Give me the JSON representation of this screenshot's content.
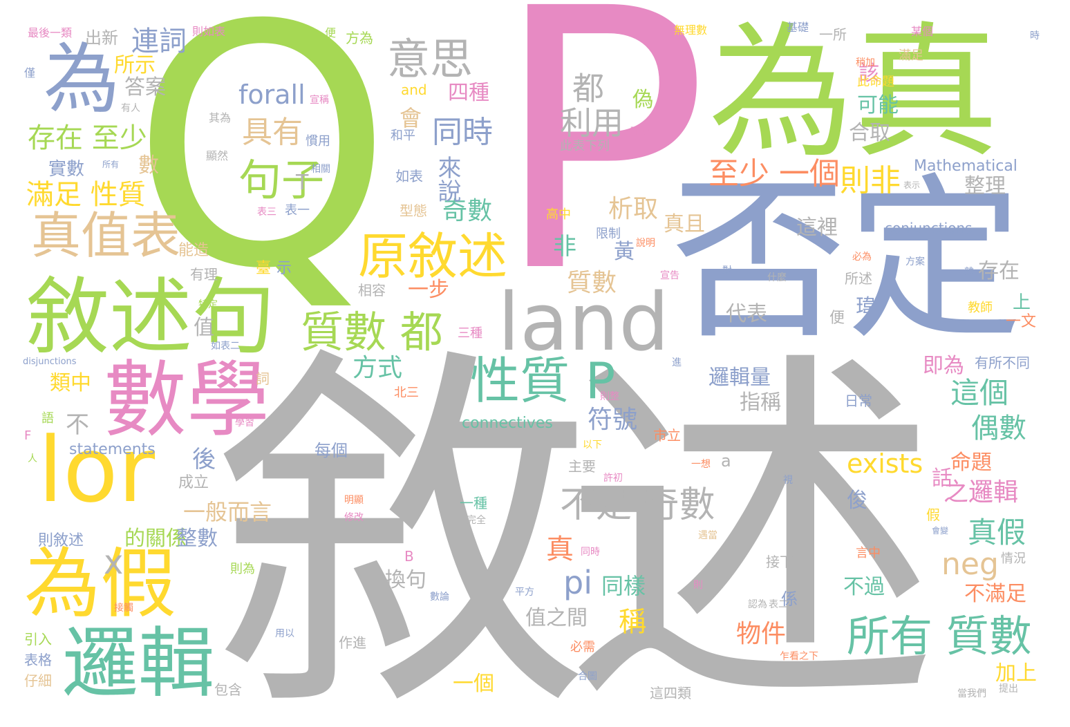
{
  "words": [
    {
      "text": "敘述",
      "color": "#b3b3b3"
    },
    {
      "text": "P",
      "color": "#e78ac3"
    },
    {
      "text": "Q",
      "color": "#a6d854"
    },
    {
      "text": "否定",
      "color": "#8da0cb"
    },
    {
      "text": "為真",
      "color": "#a6d854"
    },
    {
      "text": "為",
      "color": "#8da0cb"
    },
    {
      "text": "敘述句",
      "color": "#a6d854"
    },
    {
      "text": "數學",
      "color": "#e78ac3"
    },
    {
      "text": "land",
      "color": "#b3b3b3"
    },
    {
      "text": "lor",
      "color": "#ffd92f"
    },
    {
      "text": "為假",
      "color": "#ffd92f"
    },
    {
      "text": "邏輯",
      "color": "#66c2a5"
    },
    {
      "text": "真值表",
      "color": "#e5c494"
    },
    {
      "text": "原敘述",
      "color": "#ffd92f"
    },
    {
      "text": "性質 P",
      "color": "#66c2a5"
    },
    {
      "text": "所有 質數",
      "color": "#66c2a5"
    },
    {
      "text": "質數 都",
      "color": "#a6d854"
    },
    {
      "text": "句子",
      "color": "#a6d854"
    },
    {
      "text": "意思",
      "color": "#b3b3b3"
    },
    {
      "text": "不是 奇數",
      "color": "#b3b3b3"
    },
    {
      "text": "存在 至少",
      "color": "#a6d854"
    },
    {
      "text": "滿足 性質",
      "color": "#ffd92f"
    },
    {
      "text": "連詞",
      "color": "#8da0cb"
    },
    {
      "text": "forall",
      "color": "#8da0cb"
    },
    {
      "text": "具有",
      "color": "#e5c494"
    },
    {
      "text": "同時",
      "color": "#8da0cb"
    },
    {
      "text": "至少 一個",
      "color": "#fc8d62"
    },
    {
      "text": "則非",
      "color": "#ffd92f"
    },
    {
      "text": "都",
      "color": "#b3b3b3"
    },
    {
      "text": "利用",
      "color": "#b3b3b3"
    },
    {
      "text": "exists",
      "color": "#ffd92f"
    },
    {
      "text": "neg",
      "color": "#e5c494"
    },
    {
      "text": "pi",
      "color": "#8da0cb"
    },
    {
      "text": "Mathematical",
      "color": "#8da0cb"
    },
    {
      "text": "conjunctions",
      "color": "#8da0cb"
    },
    {
      "text": "connectives",
      "color": "#66c2a5"
    },
    {
      "text": "statements",
      "color": "#8da0cb"
    },
    {
      "text": "disjunctions",
      "color": "#8da0cb"
    },
    {
      "text": "and",
      "color": "#ffd92f"
    },
    {
      "text": "奇數",
      "color": "#66c2a5"
    },
    {
      "text": "析取",
      "color": "#e5c494"
    },
    {
      "text": "質數",
      "color": "#e5c494"
    },
    {
      "text": "這個",
      "color": "#66c2a5"
    },
    {
      "text": "偶數",
      "color": "#66c2a5"
    },
    {
      "text": "真假",
      "color": "#66c2a5"
    },
    {
      "text": "之邏輯",
      "color": "#e78ac3"
    },
    {
      "text": "命題",
      "color": "#fc8d62"
    },
    {
      "text": "物件",
      "color": "#fc8d62"
    },
    {
      "text": "方式",
      "color": "#66c2a5"
    },
    {
      "text": "符號",
      "color": "#8da0cb"
    },
    {
      "text": "一般而言",
      "color": "#e5c494"
    },
    {
      "text": "的關係",
      "color": "#a6d854"
    },
    {
      "text": "整數",
      "color": "#8da0cb"
    },
    {
      "text": "換句",
      "color": "#b3b3b3"
    },
    {
      "text": "同樣",
      "color": "#66c2a5"
    },
    {
      "text": "值之間",
      "color": "#b3b3b3"
    },
    {
      "text": "邏輯量",
      "color": "#8da0cb"
    },
    {
      "text": "指稱",
      "color": "#b3b3b3"
    },
    {
      "text": "四種",
      "color": "#e78ac3"
    },
    {
      "text": "答案",
      "color": "#b3b3b3"
    },
    {
      "text": "所示",
      "color": "#ffd92f"
    },
    {
      "text": "整理",
      "color": "#b3b3b3"
    },
    {
      "text": "合取",
      "color": "#b3b3b3"
    },
    {
      "text": "可能",
      "color": "#66c2a5"
    },
    {
      "text": "該",
      "color": "#e78ac3"
    },
    {
      "text": "真且",
      "color": "#e5c494"
    },
    {
      "text": "這裡",
      "color": "#b3b3b3"
    },
    {
      "text": "存在",
      "color": "#b3b3b3"
    },
    {
      "text": "代表",
      "color": "#b3b3b3"
    },
    {
      "text": "不滿足",
      "color": "#fc8d62"
    },
    {
      "text": "即為",
      "color": "#e78ac3"
    },
    {
      "text": "不過",
      "color": "#66c2a5"
    },
    {
      "text": "加上",
      "color": "#ffd92f"
    },
    {
      "text": "一步",
      "color": "#fc8d62"
    },
    {
      "text": "來說",
      "color": "#8da0cb"
    },
    {
      "text": "會",
      "color": "#e5c494"
    },
    {
      "text": "偽",
      "color": "#a6d854"
    },
    {
      "text": "非",
      "color": "#66c2a5"
    },
    {
      "text": "稱",
      "color": "#ffd92f"
    },
    {
      "text": "真",
      "color": "#fc8d62"
    },
    {
      "text": "黃",
      "color": "#8da0cb"
    },
    {
      "text": "實數",
      "color": "#8da0cb"
    },
    {
      "text": "數",
      "color": "#e5c494"
    },
    {
      "text": "類中",
      "color": "#ffd92f"
    },
    {
      "text": "不",
      "color": "#b3b3b3"
    },
    {
      "text": "後",
      "color": "#8da0cb"
    },
    {
      "text": "值",
      "color": "#b3b3b3"
    },
    {
      "text": "話",
      "color": "#e78ac3"
    },
    {
      "text": "則敘述",
      "color": "#8da0cb"
    },
    {
      "text": "一個",
      "color": "#ffd92f"
    },
    {
      "text": "成立",
      "color": "#b3b3b3"
    },
    {
      "text": "每個",
      "color": "#8da0cb"
    },
    {
      "text": "出新",
      "color": "#b3b3b3"
    },
    {
      "text": "最後一類",
      "color": "#e78ac3"
    },
    {
      "text": "則如表",
      "color": "#e78ac3"
    },
    {
      "text": "無理數",
      "color": "#ffd92f"
    },
    {
      "text": "基礎",
      "color": "#8da0cb"
    },
    {
      "text": "某個",
      "color": "#e78ac3"
    },
    {
      "text": "方為",
      "color": "#a6d854"
    },
    {
      "text": "此命題",
      "color": "#ffd92f"
    },
    {
      "text": "滿足",
      "color": "#e5c494"
    },
    {
      "text": "和平",
      "color": "#8da0cb"
    },
    {
      "text": "如表",
      "color": "#8da0cb"
    },
    {
      "text": "型態",
      "color": "#e5c494"
    },
    {
      "text": "高中",
      "color": "#ffd92f"
    },
    {
      "text": "限制",
      "color": "#8da0cb"
    },
    {
      "text": "表三",
      "color": "#e78ac3"
    },
    {
      "text": "表一",
      "color": "#8da0cb"
    },
    {
      "text": "能造",
      "color": "#e5c494"
    },
    {
      "text": "有理",
      "color": "#b3b3b3"
    },
    {
      "text": "臺",
      "color": "#ffd92f"
    },
    {
      "text": "示",
      "color": "#8da0cb"
    },
    {
      "text": "相容",
      "color": "#b3b3b3"
    },
    {
      "text": "三種",
      "color": "#e78ac3"
    },
    {
      "text": "市立",
      "color": "#fc8d62"
    },
    {
      "text": "北三",
      "color": "#fc8d62"
    },
    {
      "text": "詞",
      "color": "#e5c494"
    },
    {
      "text": "語",
      "color": "#a6d854"
    },
    {
      "text": "學習",
      "color": "#e78ac3"
    },
    {
      "text": "以下",
      "color": "#ffd92f"
    },
    {
      "text": "主要",
      "color": "#b3b3b3"
    },
    {
      "text": "許初",
      "color": "#e78ac3"
    },
    {
      "text": "一想",
      "color": "#fc8d62"
    },
    {
      "text": "俊",
      "color": "#8da0cb"
    },
    {
      "text": "明顯",
      "color": "#fc8d62"
    },
    {
      "text": "修改",
      "color": "#e78ac3"
    },
    {
      "text": "一種",
      "color": "#66c2a5"
    },
    {
      "text": "完全",
      "color": "#b3b3b3"
    },
    {
      "text": "假",
      "color": "#ffd92f"
    },
    {
      "text": "會變",
      "color": "#8da0cb"
    },
    {
      "text": "言中",
      "color": "#fc8d62"
    },
    {
      "text": "情況",
      "color": "#b3b3b3"
    },
    {
      "text": "接下",
      "color": "#b3b3b3"
    },
    {
      "text": "同時",
      "color": "#e78ac3"
    },
    {
      "text": "平方",
      "color": "#8da0cb"
    },
    {
      "text": "數論",
      "color": "#8da0cb"
    },
    {
      "text": "則為",
      "color": "#a6d854"
    },
    {
      "text": "接觸",
      "color": "#fc8d62"
    },
    {
      "text": "用以",
      "color": "#8da0cb"
    },
    {
      "text": "作進",
      "color": "#b3b3b3"
    },
    {
      "text": "必需",
      "color": "#fc8d62"
    },
    {
      "text": "合圖",
      "color": "#8da0cb"
    },
    {
      "text": "乍看之下",
      "color": "#fc8d62"
    },
    {
      "text": "這四類",
      "color": "#b3b3b3"
    },
    {
      "text": "當我們",
      "color": "#b3b3b3"
    },
    {
      "text": "提出",
      "color": "#b3b3b3"
    },
    {
      "text": "引入",
      "color": "#a6d854"
    },
    {
      "text": "表格",
      "color": "#8da0cb"
    },
    {
      "text": "仔細",
      "color": "#e5c494"
    },
    {
      "text": "包含",
      "color": "#b3b3b3"
    },
    {
      "text": "宣稱",
      "color": "#e78ac3"
    },
    {
      "text": "慣用",
      "color": "#8da0cb"
    },
    {
      "text": "其為",
      "color": "#b3b3b3"
    },
    {
      "text": "顯然",
      "color": "#b3b3b3"
    },
    {
      "text": "相關",
      "color": "#8da0cb"
    },
    {
      "text": "所有",
      "color": "#8da0cb"
    },
    {
      "text": "有人",
      "color": "#b3b3b3"
    },
    {
      "text": "僅",
      "color": "#8da0cb"
    },
    {
      "text": "便",
      "color": "#a6d854"
    },
    {
      "text": "此表下列",
      "color": "#b3b3b3"
    },
    {
      "text": "而連",
      "color": "#e78ac3"
    },
    {
      "text": "說明",
      "color": "#fc8d62"
    },
    {
      "text": "宣告",
      "color": "#e78ac3"
    },
    {
      "text": "對",
      "color": "#8da0cb"
    },
    {
      "text": "什麼",
      "color": "#b3b3b3"
    },
    {
      "text": "必為",
      "color": "#fc8d62"
    },
    {
      "text": "表示",
      "color": "#b3b3b3"
    },
    {
      "text": "方案",
      "color": "#8da0cb"
    },
    {
      "text": "雜",
      "color": "#8da0cb"
    },
    {
      "text": "所述",
      "color": "#b3b3b3"
    },
    {
      "text": "瑋",
      "color": "#8da0cb"
    },
    {
      "text": "上",
      "color": "#66c2a5"
    },
    {
      "text": "一文",
      "color": "#fc8d62"
    },
    {
      "text": "教師",
      "color": "#ffd92f"
    },
    {
      "text": "便",
      "color": "#b3b3b3"
    },
    {
      "text": "有所不同",
      "color": "#8da0cb"
    },
    {
      "text": "日常",
      "color": "#8da0cb"
    },
    {
      "text": "稍加",
      "color": "#fc8d62"
    },
    {
      "text": "時",
      "color": "#8da0cb"
    },
    {
      "text": "一所",
      "color": "#b3b3b3"
    },
    {
      "text": "特定",
      "color": "#a6d854"
    },
    {
      "text": "如表二",
      "color": "#8da0cb"
    },
    {
      "text": "則",
      "color": "#e78ac3"
    },
    {
      "text": "表二",
      "color": "#b3b3b3"
    },
    {
      "text": "認為",
      "color": "#b3b3b3"
    },
    {
      "text": "遇當",
      "color": "#e5c494"
    },
    {
      "text": "則整",
      "color": "#e78ac3"
    },
    {
      "text": "視",
      "color": "#8da0cb"
    },
    {
      "text": "進",
      "color": "#8da0cb"
    },
    {
      "text": "係",
      "color": "#8da0cb"
    },
    {
      "text": "T",
      "color": "#b3b3b3"
    },
    {
      "text": "F",
      "color": "#e78ac3"
    },
    {
      "text": "B",
      "color": "#e78ac3"
    },
    {
      "text": "a",
      "color": "#b3b3b3"
    },
    {
      "text": "x",
      "color": "#b3b3b3"
    },
    {
      "text": "人",
      "color": "#a6d854"
    },
    {
      "text": "使",
      "color": "#a6d854"
    }
  ]
}
